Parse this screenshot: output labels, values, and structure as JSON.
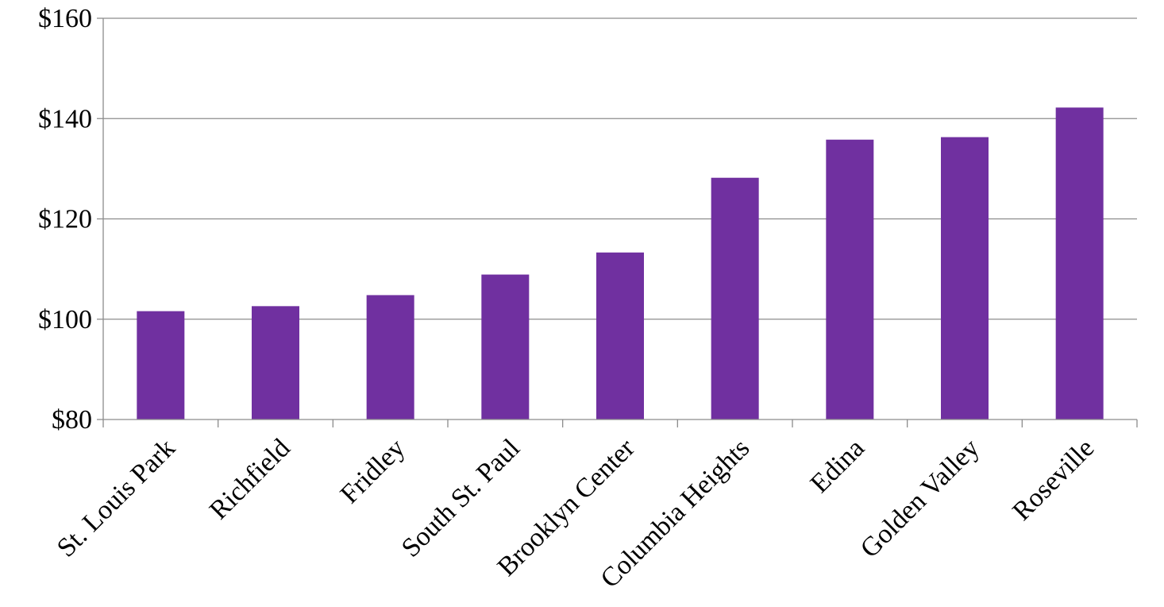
{
  "chart_data": {
    "type": "bar",
    "categories": [
      "St. Louis Park",
      "Richfield",
      "Fridley",
      "South St. Paul",
      "Brooklyn Center",
      "Columbia Heights",
      "Edina",
      "Golden Valley",
      "Roseville"
    ],
    "values": [
      101.6,
      102.6,
      104.8,
      108.9,
      113.3,
      128.2,
      135.8,
      136.3,
      142.2
    ],
    "y_ticks": [
      "$80",
      "$100",
      "$120",
      "$140",
      "$160"
    ],
    "ylim": [
      80,
      160
    ],
    "title": "",
    "xlabel": "",
    "ylabel": "",
    "grid": true,
    "bar_color": "#7030A0"
  }
}
